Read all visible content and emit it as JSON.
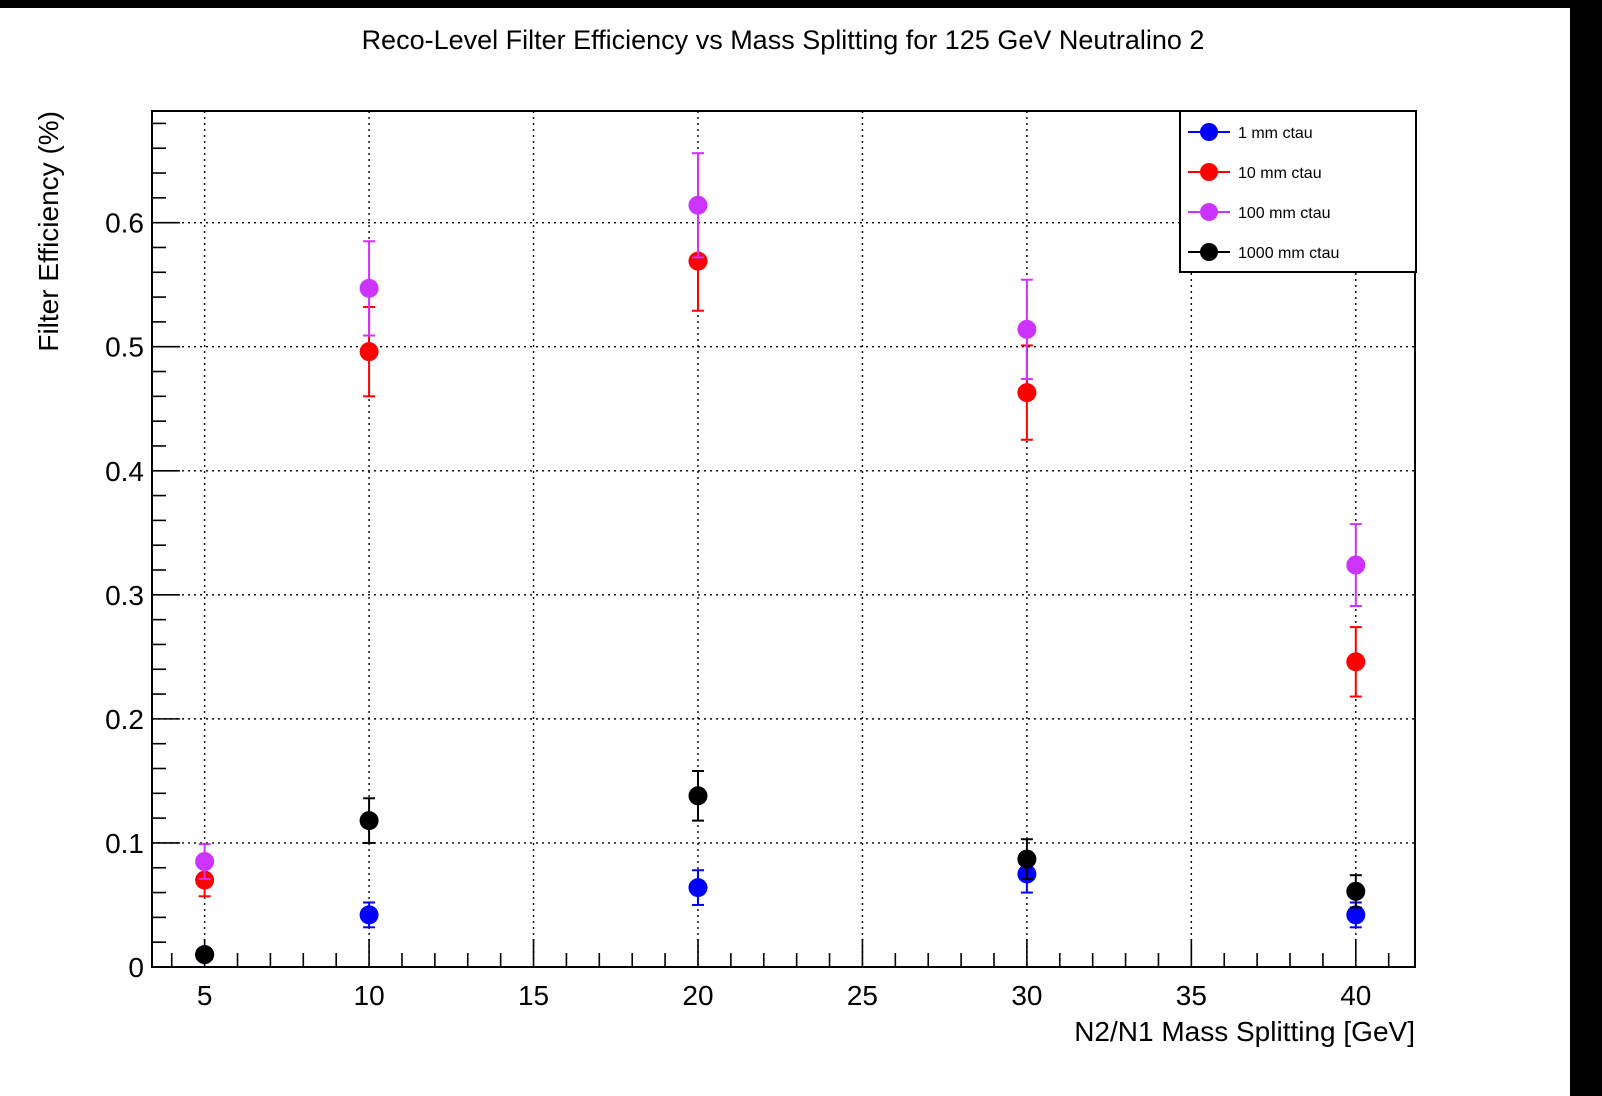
{
  "chart_data": {
    "type": "scatter",
    "title": "Reco-Level Filter Efficiency vs Mass Splitting for 125 GeV Neutralino 2",
    "xlabel": "N2/N1 Mass Splitting [GeV]",
    "ylabel": "Filter Efficiency (%)",
    "xlim": [
      3.4,
      41.8
    ],
    "ylim": [
      0,
      0.69
    ],
    "xticks": [
      5,
      10,
      15,
      20,
      25,
      30,
      35,
      40
    ],
    "xtick_labels": [
      "5",
      "10",
      "15",
      "20",
      "25",
      "30",
      "35",
      "40"
    ],
    "yticks": [
      0,
      0.1,
      0.2,
      0.3,
      0.4,
      0.5,
      0.6
    ],
    "ytick_labels": [
      "0",
      "0.1",
      "0.2",
      "0.3",
      "0.4",
      "0.5",
      "0.6"
    ],
    "grid": true,
    "legend_position": "top-right",
    "series": [
      {
        "name": "1 mm ctau",
        "color": "#0000ff",
        "x": [
          5,
          10,
          20,
          30,
          40
        ],
        "y": [
          0.01,
          0.042,
          0.064,
          0.075,
          0.042
        ],
        "yerr": [
          0.004,
          0.01,
          0.014,
          0.015,
          0.01
        ]
      },
      {
        "name": "10 mm ctau",
        "color": "#ff0000",
        "x": [
          5,
          10,
          20,
          30,
          40
        ],
        "y": [
          0.07,
          0.496,
          0.569,
          0.463,
          0.246
        ],
        "yerr": [
          0.013,
          0.036,
          0.04,
          0.038,
          0.028
        ]
      },
      {
        "name": "100 mm ctau",
        "color": "#cc33ff",
        "x": [
          5,
          10,
          20,
          30,
          40
        ],
        "y": [
          0.085,
          0.547,
          0.614,
          0.514,
          0.324
        ],
        "yerr": [
          0.014,
          0.038,
          0.042,
          0.04,
          0.033
        ]
      },
      {
        "name": "1000 mm ctau",
        "color": "#000000",
        "x": [
          5,
          10,
          20,
          30,
          40
        ],
        "y": [
          0.01,
          0.118,
          0.138,
          0.087,
          0.061
        ],
        "yerr": [
          0.004,
          0.018,
          0.02,
          0.016,
          0.013
        ]
      }
    ]
  }
}
